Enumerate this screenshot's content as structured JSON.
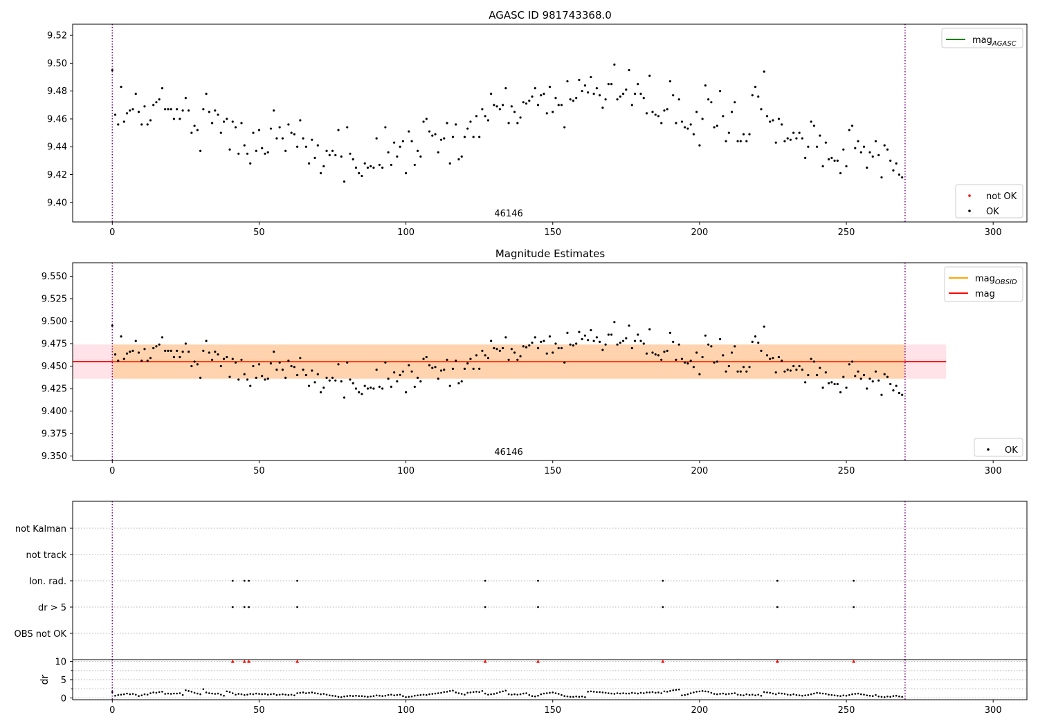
{
  "figure": {
    "background": "#ffffff"
  },
  "chart_data": [
    {
      "type": "scatter",
      "title": "AGASC ID 981743368.0",
      "xlabel": "",
      "ylabel": "",
      "xlim": [
        -13.5,
        311.5
      ],
      "ylim": [
        9.386,
        9.528
      ],
      "xticks": [
        0,
        50,
        100,
        150,
        200,
        250,
        300
      ],
      "yticks": [
        9.4,
        9.42,
        9.44,
        9.46,
        9.48,
        9.5,
        9.52
      ],
      "ytick_decimals": 2,
      "vlines": [
        0,
        270
      ],
      "vline_color": "#800080",
      "annotation": {
        "text": "46146",
        "x": 135
      },
      "legends": [
        {
          "placement": "top-right",
          "entries": [
            {
              "label": "mag",
              "sub": "AGASC",
              "kind": "line",
              "color": "#008000"
            }
          ]
        },
        {
          "placement": "bottom-right",
          "entries": [
            {
              "label": "not OK",
              "kind": "dot",
              "color": "#ff0000"
            },
            {
              "label": "OK",
              "kind": "dot",
              "color": "#000000"
            }
          ]
        }
      ],
      "series": [
        {
          "name": "OK",
          "color": "#000000",
          "points_ref": "series_points"
        }
      ]
    },
    {
      "type": "scatter",
      "title": "Magnitude Estimates",
      "xlabel": "",
      "ylabel": "",
      "xlim": [
        -13.5,
        311.5
      ],
      "ylim": [
        9.345,
        9.565
      ],
      "xticks": [
        0,
        50,
        100,
        150,
        200,
        250,
        300
      ],
      "yticks": [
        9.35,
        9.375,
        9.4,
        9.425,
        9.45,
        9.475,
        9.5,
        9.525,
        9.55
      ],
      "ytick_decimals": 3,
      "vlines": [
        0,
        270
      ],
      "vline_color": "#800080",
      "annotation": {
        "text": "46146",
        "x": 135
      },
      "mag_line": {
        "y": 9.455,
        "x": [
          -13.5,
          284
        ],
        "color": "#ff0000"
      },
      "bands": [
        {
          "y": [
            9.436,
            9.474
          ],
          "x": [
            -13.5,
            284
          ],
          "color": "#ffc0cb",
          "opacity": 0.45
        },
        {
          "y": [
            9.436,
            9.474
          ],
          "x": [
            0,
            270
          ],
          "color": "#ffa500",
          "opacity": 0.25
        }
      ],
      "legends": [
        {
          "placement": "top-right",
          "entries": [
            {
              "label": "mag",
              "sub": "OBSID",
              "kind": "line",
              "color": "#ffa500"
            },
            {
              "label": "mag",
              "sub": "",
              "kind": "line",
              "color": "#ff0000"
            }
          ]
        },
        {
          "placement": "bottom-right",
          "entries": [
            {
              "label": "OK",
              "kind": "dot",
              "color": "#000000"
            }
          ]
        }
      ],
      "series": [
        {
          "name": "OK",
          "color": "#000000",
          "points_ref": "series_points"
        }
      ]
    },
    {
      "type": "scatter",
      "title": "",
      "xlim": [
        -13.5,
        311.5
      ],
      "vlines": [
        0,
        270
      ],
      "vline_color": "#800080",
      "categories": [
        "not Kalman",
        "not track",
        "Ion. rad.",
        "dr > 5",
        "OBS not OK"
      ],
      "flag_events": {
        "Ion. rad.": [
          41,
          45,
          46.5,
          63,
          127,
          145,
          187.5,
          226.5,
          252.5
        ],
        "dr > 5": [
          41,
          45,
          46.5,
          63,
          127,
          145,
          187.5,
          226.5,
          252.5
        ]
      }
    },
    {
      "type": "line",
      "title": "",
      "ylabel": "dr",
      "xlim": [
        -13.5,
        311.5
      ],
      "ylim": [
        -0.5,
        10.5
      ],
      "yticks": [
        0,
        5,
        10
      ],
      "yticks_minor": [
        2.5,
        7.5
      ],
      "xticks": [
        0,
        50,
        100,
        150,
        200,
        250,
        300
      ],
      "vlines": [
        0,
        270
      ],
      "vline_color": "#800080",
      "capped_value": 10,
      "capped_x": [
        41,
        45,
        46.5,
        63,
        127,
        145,
        187.5,
        226.5,
        252.5
      ],
      "capped_color": "#ff0000"
    }
  ]
}
